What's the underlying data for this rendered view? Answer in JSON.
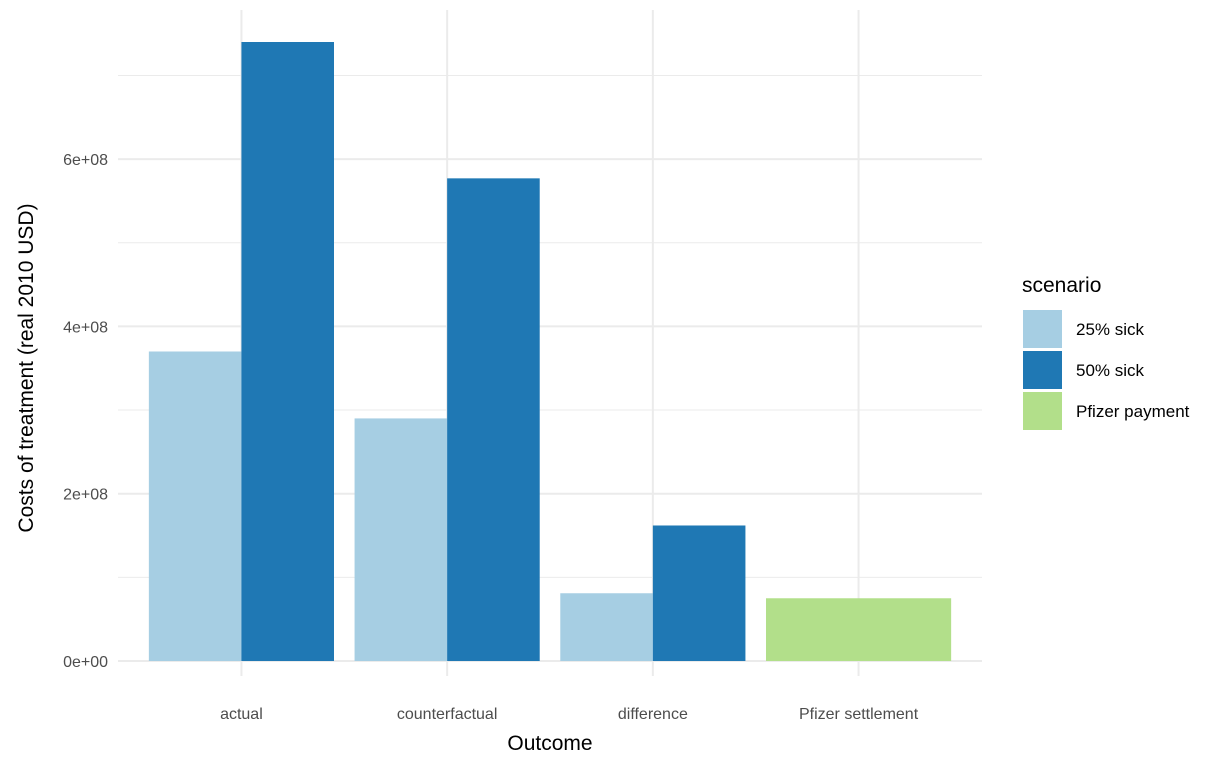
{
  "chart_data": {
    "type": "bar",
    "categories": [
      "actual",
      "counterfactual",
      "difference",
      "Pfizer settlement"
    ],
    "series": [
      {
        "name": "25% sick",
        "color": "#a6cee3",
        "values": [
          370000000,
          290000000,
          81000000,
          null
        ]
      },
      {
        "name": "50% sick",
        "color": "#1f78b4",
        "values": [
          740000000,
          577000000,
          162000000,
          null
        ]
      },
      {
        "name": "Pfizer payment",
        "color": "#b2df8a",
        "values": [
          null,
          null,
          null,
          75000000
        ]
      }
    ],
    "xlabel": "Outcome",
    "ylabel": "Costs of treatment (real 2010 USD)",
    "ylim": [
      0,
      740000000
    ],
    "yticks": [
      0,
      200000000,
      400000000,
      600000000
    ],
    "ytick_labels": [
      "0e+00",
      "2e+08",
      "4e+08",
      "6e+08"
    ],
    "legend_title": "scenario",
    "legend_position": "right",
    "grid": true
  }
}
